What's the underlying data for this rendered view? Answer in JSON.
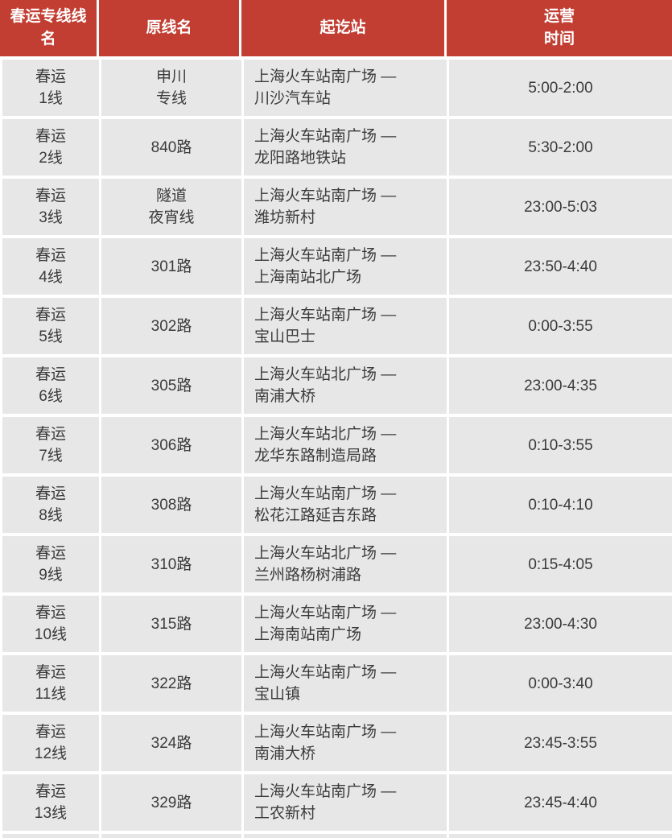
{
  "colors": {
    "header_bg": "#c23e33",
    "header_text": "#ffffff",
    "row_bg": "#e7e7e7",
    "body_text": "#3b3b3b"
  },
  "table": {
    "columns": [
      {
        "label": "春运专线线\n名"
      },
      {
        "label": "原线名"
      },
      {
        "label": "起讫站"
      },
      {
        "label": "运营\n时间"
      }
    ],
    "rows": [
      {
        "line": "春运\n1线",
        "original": "申川\n专线",
        "route": "上海火车站南广场 —\n川沙汽车站",
        "hours": "5:00-2:00"
      },
      {
        "line": "春运\n2线",
        "original": "840路",
        "route": "上海火车站南广场 —\n龙阳路地铁站",
        "hours": "5:30-2:00"
      },
      {
        "line": "春运\n3线",
        "original": "隧道\n夜宵线",
        "route": "上海火车站南广场 —\n潍坊新村",
        "hours": "23:00-5:03"
      },
      {
        "line": "春运\n4线",
        "original": "301路",
        "route": "上海火车站南广场 —\n上海南站北广场",
        "hours": "23:50-4:40"
      },
      {
        "line": "春运\n5线",
        "original": "302路",
        "route": "上海火车站南广场 —\n宝山巴士",
        "hours": "0:00-3:55"
      },
      {
        "line": "春运\n6线",
        "original": "305路",
        "route": "上海火车站北广场 —\n南浦大桥",
        "hours": "23:00-4:35"
      },
      {
        "line": "春运\n7线",
        "original": "306路",
        "route": "上海火车站北广场 —\n龙华东路制造局路",
        "hours": "0:10-3:55"
      },
      {
        "line": "春运\n8线",
        "original": "308路",
        "route": "上海火车站南广场 —\n松花江路延吉东路",
        "hours": "0:10-4:10"
      },
      {
        "line": "春运\n9线",
        "original": "310路",
        "route": "上海火车站北广场 —\n兰州路杨树浦路",
        "hours": "0:15-4:05"
      },
      {
        "line": "春运\n10线",
        "original": "315路",
        "route": "上海火车站南广场 —\n上海南站南广场",
        "hours": "23:00-4:30"
      },
      {
        "line": "春运\n11线",
        "original": "322路",
        "route": "上海火车站南广场 —\n宝山镇",
        "hours": "0:00-3:40"
      },
      {
        "line": "春运\n12线",
        "original": "324路",
        "route": "上海火车站南广场 —\n南浦大桥",
        "hours": "23:45-3:55"
      },
      {
        "line": "春运\n13线",
        "original": "329路",
        "route": "上海火车站南广场 —\n工农新村",
        "hours": "23:45-4:40"
      }
    ]
  }
}
